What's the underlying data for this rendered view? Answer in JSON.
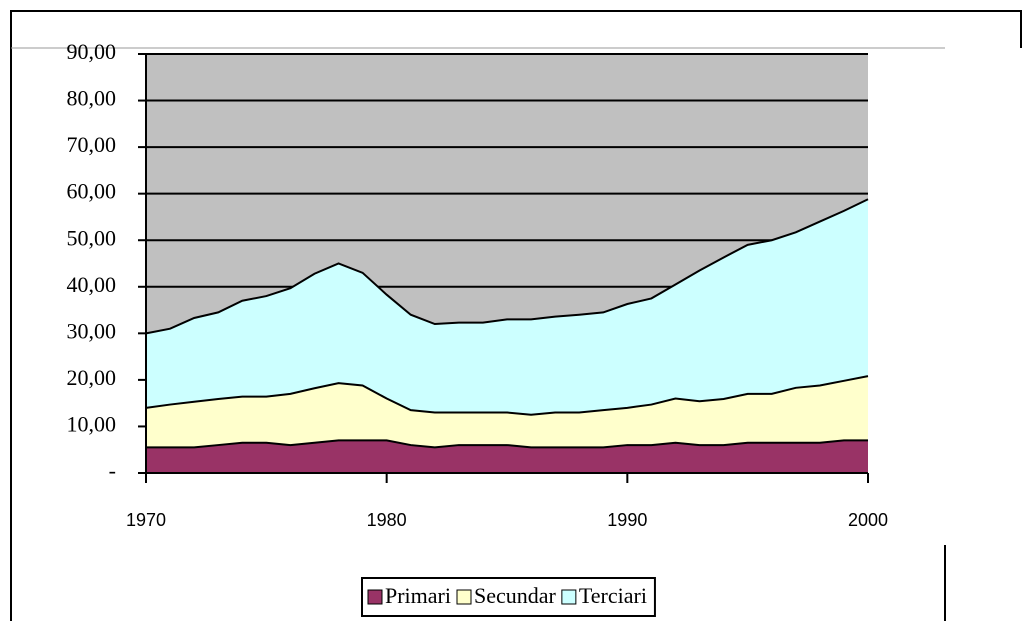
{
  "chart_data": {
    "type": "stacked_area",
    "x": [
      1970,
      1971,
      1972,
      1973,
      1974,
      1975,
      1976,
      1977,
      1978,
      1979,
      1980,
      1981,
      1982,
      1983,
      1984,
      1985,
      1986,
      1987,
      1988,
      1989,
      1990,
      1991,
      1992,
      1993,
      1994,
      1995,
      1996,
      1997,
      1998,
      1999,
      2000
    ],
    "series": [
      {
        "name": "Primari",
        "color": "#993366",
        "values": [
          5.5,
          5.5,
          5.5,
          6,
          6.5,
          6.5,
          6,
          6.5,
          7,
          7,
          7,
          6,
          5.5,
          6,
          6,
          6,
          5.5,
          5.5,
          5.5,
          5.5,
          6,
          6,
          6.5,
          6,
          6,
          6.5,
          6.5,
          6.5,
          6.5,
          7,
          7
        ]
      },
      {
        "name": "Secundar",
        "color": "#ffffcc",
        "values": [
          8.5,
          9.2,
          9.8,
          9.9,
          9.9,
          9.9,
          11,
          11.7,
          12.3,
          11.8,
          9,
          7.5,
          7.5,
          7,
          7,
          7,
          7,
          7.5,
          7.5,
          8,
          8,
          8.7,
          9.5,
          9.4,
          9.9,
          10.5,
          10.5,
          11.8,
          12.3,
          12.8,
          13.8
        ]
      },
      {
        "name": "Terciari",
        "color": "#ccffff",
        "values": [
          16,
          16.3,
          18,
          18.6,
          20.6,
          21.6,
          22.7,
          24.6,
          25.7,
          24.2,
          22.3,
          20.5,
          19,
          19.3,
          19.3,
          20,
          20.5,
          20.6,
          21,
          21,
          22.3,
          22.8,
          24.5,
          28.1,
          30.4,
          32,
          33,
          33.4,
          35.2,
          36.5,
          38
        ]
      }
    ],
    "xlim": [
      1970,
      2000
    ],
    "xticks": [
      1970,
      1980,
      1990,
      2000
    ],
    "ylim": [
      0,
      90
    ],
    "yticks": [
      {
        "value": 0,
        "label": "-"
      },
      {
        "value": 10,
        "label": "10,00"
      },
      {
        "value": 20,
        "label": "20,00"
      },
      {
        "value": 30,
        "label": "30,00"
      },
      {
        "value": 40,
        "label": "40,00"
      },
      {
        "value": 50,
        "label": "50,00"
      },
      {
        "value": 60,
        "label": "60,00"
      },
      {
        "value": 70,
        "label": "70,00"
      },
      {
        "value": 80,
        "label": "80,00"
      },
      {
        "value": 90,
        "label": "90,00"
      }
    ],
    "grid": true,
    "plot_background": "#c0c0c0",
    "legend": "bottom"
  }
}
